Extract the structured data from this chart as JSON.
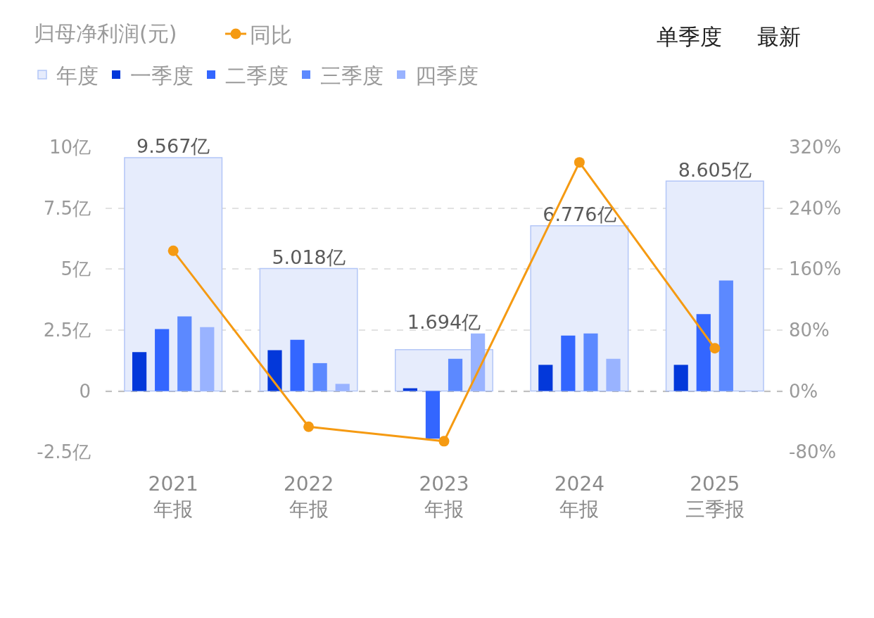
{
  "chart_data": {
    "type": "bar",
    "title": "归母净利润(元)",
    "categories": [
      "2021\n年报",
      "2022\n年报",
      "2023\n年报",
      "2024\n年报",
      "2025\n三季报"
    ],
    "series": [
      {
        "name": "年度",
        "color": "#e6ecfc",
        "values": [
          9.567,
          5.018,
          1.694,
          6.776,
          8.605
        ],
        "value_labels": [
          "9.567亿",
          "5.018亿",
          "1.694亿",
          "6.776亿",
          "8.605亿"
        ]
      },
      {
        "name": "一季度",
        "color": "#0338da",
        "values": [
          1.59,
          1.67,
          0.11,
          1.07,
          1.07
        ]
      },
      {
        "name": "二季度",
        "color": "#3366ff",
        "values": [
          2.54,
          2.1,
          -1.96,
          2.27,
          3.15
        ]
      },
      {
        "name": "三季度",
        "color": "#5c89ff",
        "values": [
          3.06,
          1.14,
          1.32,
          2.36,
          4.53
        ]
      },
      {
        "name": "四季度",
        "color": "#99b3ff",
        "values": [
          2.62,
          0.29,
          2.36,
          1.32,
          null
        ]
      },
      {
        "name": "同比",
        "type": "line",
        "axis": "y2",
        "color": "#f59a12",
        "values": [
          184,
          -47,
          -66,
          300,
          56
        ]
      }
    ],
    "ylim": [
      -2.5,
      10
    ],
    "yticks": [
      {
        "value": -2.5,
        "label": "-2.5亿"
      },
      0,
      {
        "value": 2.5,
        "label": "2.5亿"
      },
      {
        "value": 5,
        "label": "5亿"
      },
      {
        "value": 7.5,
        "label": "7.5亿"
      },
      {
        "value": 10,
        "label": "10亿"
      }
    ],
    "y2lim": [
      -80,
      320
    ],
    "y2ticks": [
      {
        "value": -80,
        "label": "-80%"
      },
      {
        "value": 0,
        "label": "0%"
      },
      {
        "value": 80,
        "label": "80%"
      },
      {
        "value": 160,
        "label": "160%"
      },
      {
        "value": 240,
        "label": "240%"
      },
      {
        "value": 320,
        "label": "320%"
      }
    ],
    "ref_lines": [
      {
        "axis": "y",
        "value": 0,
        "color": "#8c8c8c",
        "line_style": "dashed"
      }
    ],
    "grid": "y",
    "legend": "top left",
    "marker": "circle",
    "line_style": "solid",
    "annotations": [
      "单季度",
      "最新"
    ]
  }
}
